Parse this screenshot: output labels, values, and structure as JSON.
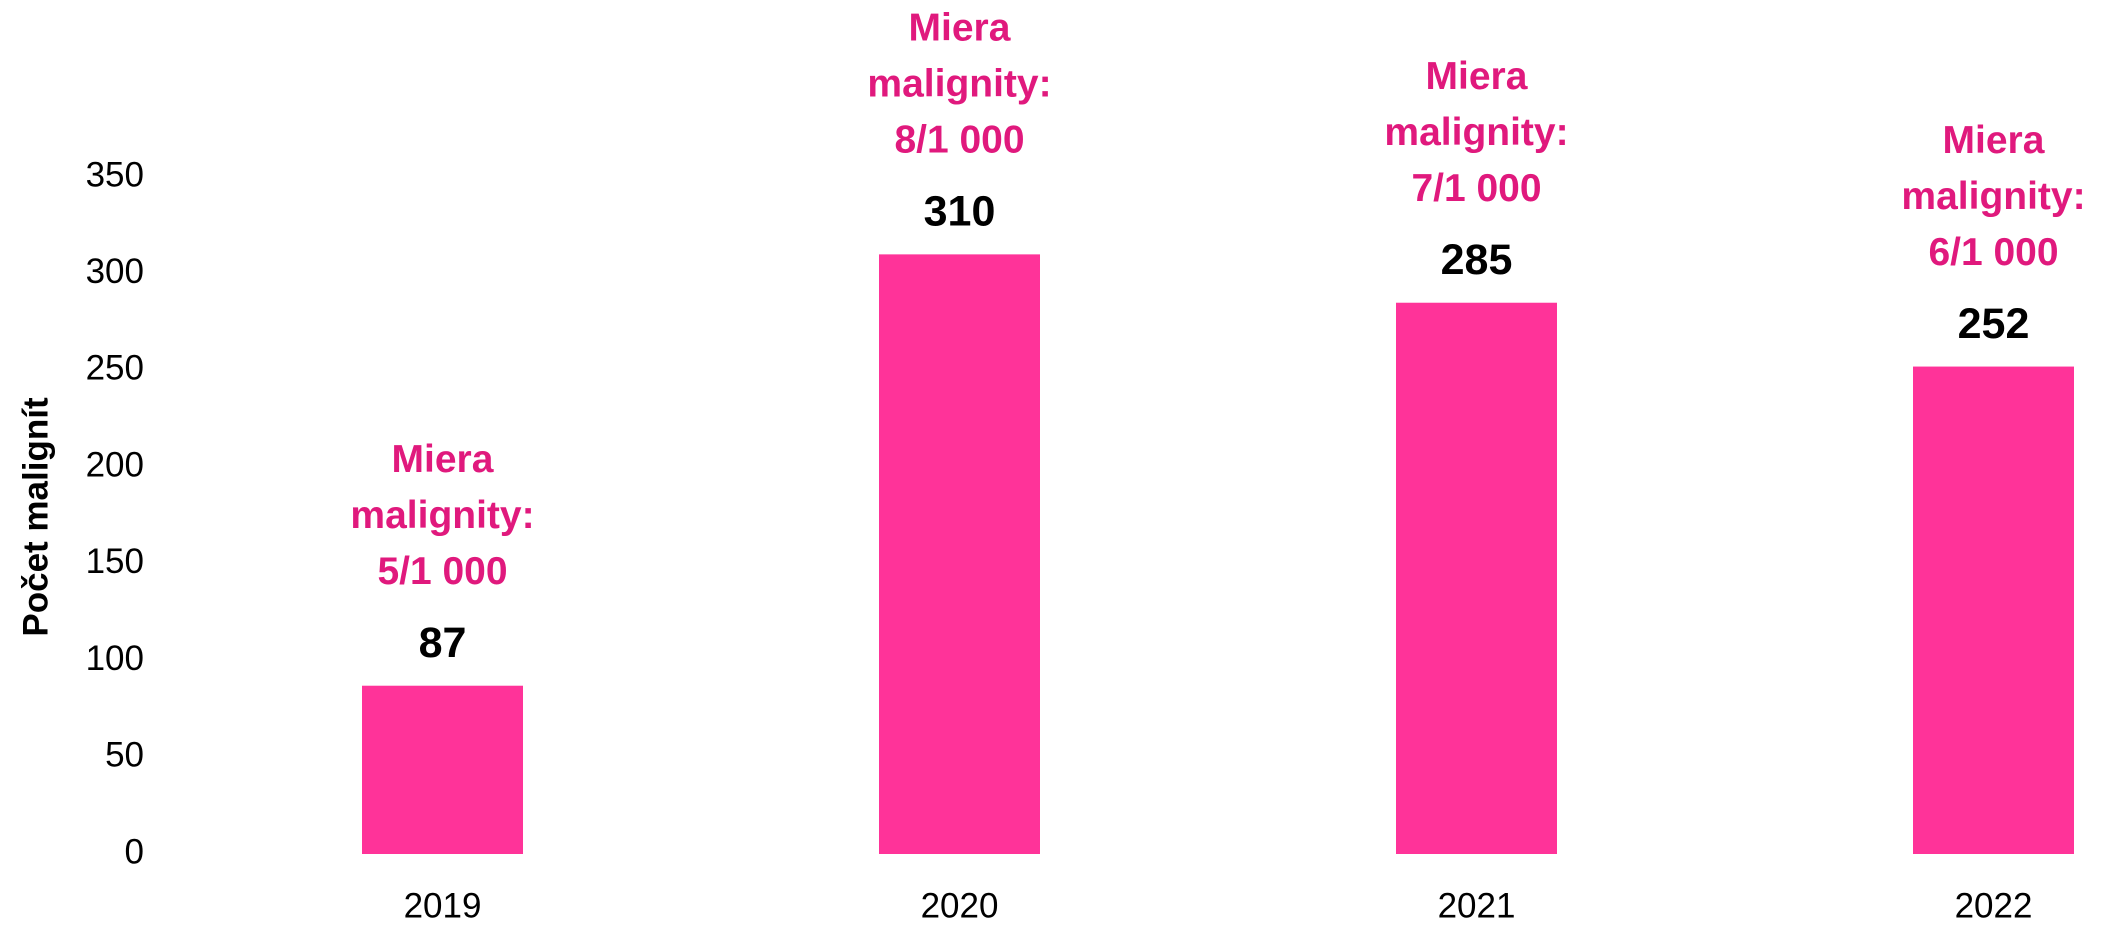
{
  "chart_data": {
    "type": "bar",
    "y_label": "Počet malignít",
    "categories": [
      "2019",
      "2020",
      "2021",
      "2022"
    ],
    "values": [
      87,
      310,
      285,
      252
    ],
    "annotations": [
      [
        "Miera",
        "malignity:",
        "5/1 000"
      ],
      [
        "Miera",
        "malignity:",
        "8/1 000"
      ],
      [
        "Miera",
        "malignity:",
        "7/1 000"
      ],
      [
        "Miera",
        "malignity:",
        "6/1 000"
      ]
    ],
    "color": "#ff3399",
    "annotation_color": "#e0197d",
    "ylim": [
      0,
      350
    ],
    "yticks": [
      0,
      50,
      100,
      150,
      200,
      250,
      300,
      350
    ],
    "grid": false
  }
}
